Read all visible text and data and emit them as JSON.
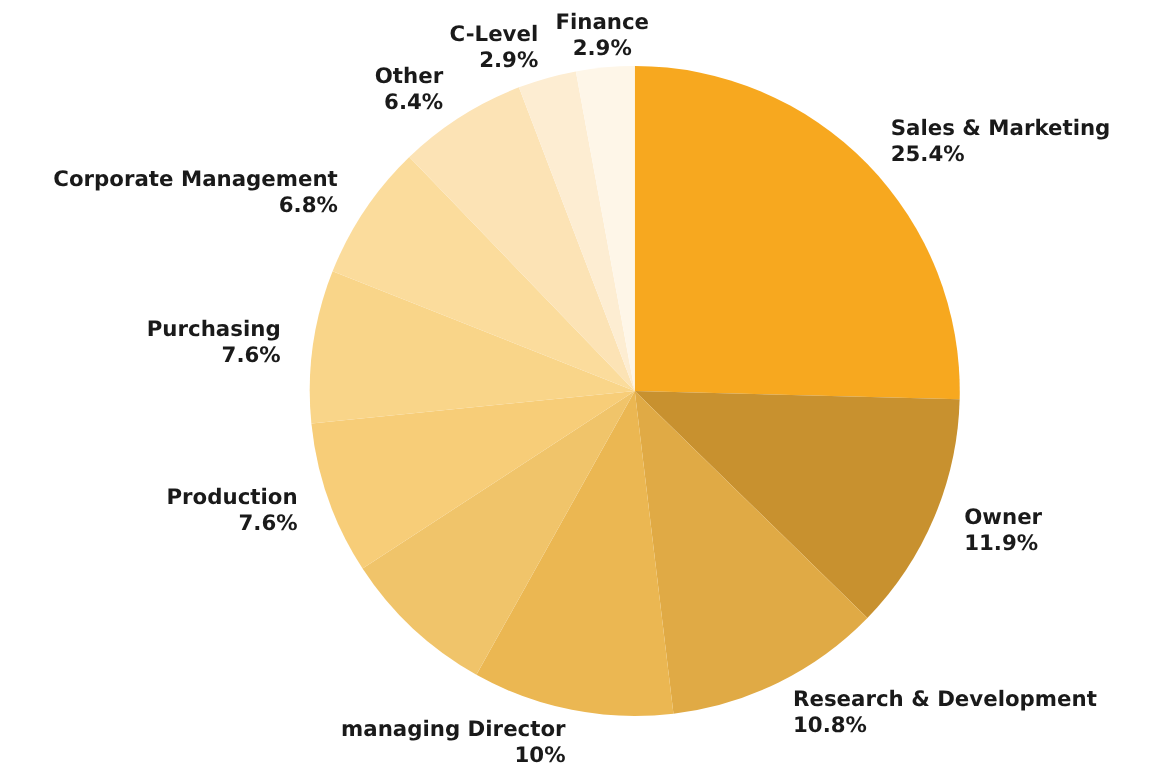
{
  "chart_data": {
    "type": "pie",
    "categories": [
      "Sales & Marketing",
      "Owner",
      "Research & Development",
      "managing Director",
      null,
      "Production",
      "Purchasing",
      "Corporate Management",
      "Other",
      "C-Level",
      "Finance"
    ],
    "values": [
      25.4,
      11.9,
      10.8,
      10,
      7.7,
      7.6,
      7.6,
      6.8,
      6.4,
      2.9,
      2.9
    ],
    "value_labels": [
      "25.4%",
      "11.9%",
      "10.8%",
      "10%",
      null,
      "7.6%",
      "7.6%",
      "6.8%",
      "6.4%",
      "2.9%",
      "2.9%"
    ],
    "colors": [
      "#f7a81f",
      "#c8912f",
      "#e0aa45",
      "#ebb752",
      "#f0c46a",
      "#f7cd78",
      "#f9d589",
      "#fbdc9c",
      "#fce3b5",
      "#fdedd2",
      "#fef6e8"
    ]
  }
}
